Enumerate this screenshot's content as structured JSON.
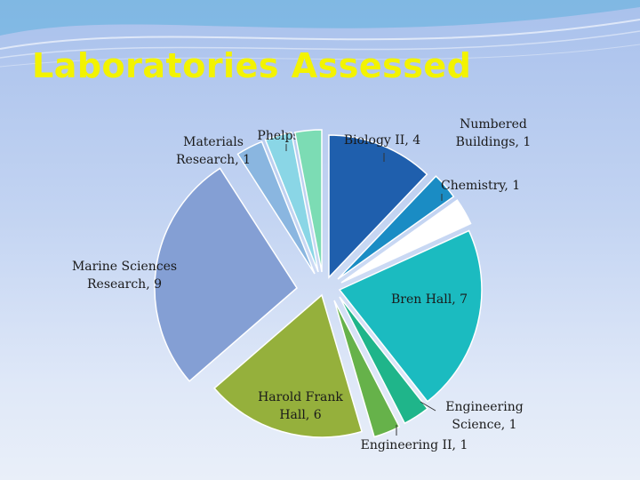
{
  "title": "Laboratories Assessed",
  "chart_data": {
    "type": "pie",
    "title": "Laboratories Assessed",
    "slices": [
      {
        "label": [
          "Biology II, 4"
        ],
        "value": 4,
        "color": "#1f5fad"
      },
      {
        "label": [
          "Numbered",
          "Buildings, 1"
        ],
        "value": 1,
        "color": "#1a8cc4"
      },
      {
        "label": [
          "Chemistry, 1"
        ],
        "value": 1,
        "color": "#ffffff"
      },
      {
        "label": [
          "Bren Hall, 7"
        ],
        "value": 7,
        "color": "#1bbbc0"
      },
      {
        "label": [
          "Engineering",
          "Science, 1"
        ],
        "value": 1,
        "color": "#1fb58a"
      },
      {
        "label": [
          "Engineering II, 1"
        ],
        "value": 1,
        "color": "#66b24a"
      },
      {
        "label": [
          "Harold Frank",
          "Hall, 6"
        ],
        "value": 6,
        "color": "#95b03c"
      },
      {
        "label": [
          "Marine Sciences",
          "Research, 9"
        ],
        "value": 9,
        "color": "#849fd4"
      },
      {
        "label": [
          "Materials",
          "Research, 1"
        ],
        "value": 1,
        "color": "#8ab6e0"
      },
      {
        "label": [
          "Phelps, 1"
        ],
        "value": 1,
        "color": "#8ad6e6"
      },
      {
        "label": [
          ""
        ],
        "value": 1,
        "color": "#7cdcb4"
      }
    ],
    "legend": "none"
  }
}
